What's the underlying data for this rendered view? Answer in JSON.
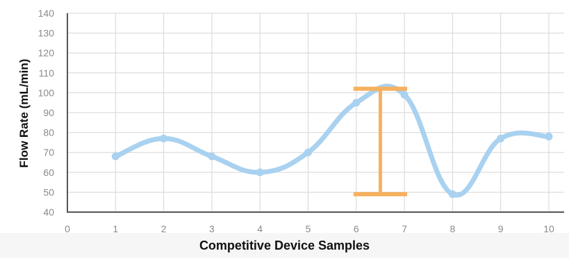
{
  "chart_data": {
    "type": "line",
    "xlabel": "Competitive Device Samples",
    "ylabel": "Flow Rate (mL/min)",
    "xlim": [
      0,
      10.5
    ],
    "ylim": [
      40,
      140
    ],
    "x_ticks": [
      0,
      1,
      2,
      3,
      4,
      5,
      6,
      7,
      8,
      9,
      10
    ],
    "y_ticks": [
      40,
      50,
      60,
      70,
      80,
      90,
      100,
      110,
      120,
      130,
      140
    ],
    "grid": true,
    "series": [
      {
        "x": [
          1,
          2,
          3,
          4,
          5,
          6,
          7,
          8,
          9,
          10
        ],
        "values": [
          68,
          77,
          68,
          60,
          70,
          95,
          99,
          49,
          77,
          78
        ],
        "color": "#a9d1f0",
        "smooth": true
      }
    ],
    "range_marker": {
      "x": 6.5,
      "low": 49,
      "high": 102,
      "left": 6,
      "right": 7,
      "color": "#f6b15e"
    },
    "axis_color": "#555555",
    "grid_color": "#d6d6d6"
  }
}
